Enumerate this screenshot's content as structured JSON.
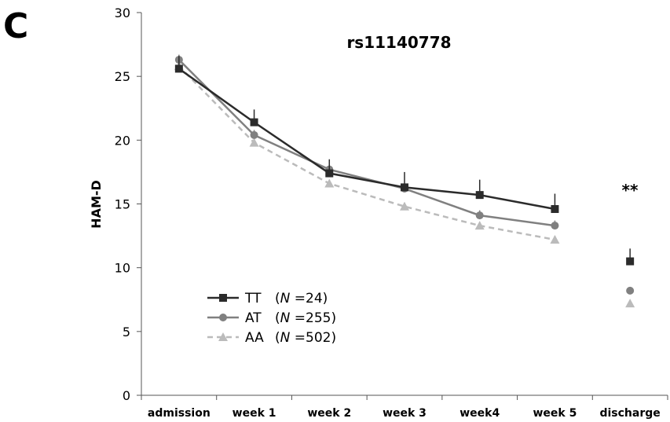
{
  "panel_label": "C",
  "chart_data": {
    "type": "line",
    "title": "rs11140778",
    "xlabel": "",
    "ylabel": "HAM-D",
    "categories": [
      "admission",
      "week 1",
      "week 2",
      "week 3",
      "week4",
      "week 5",
      "discharge"
    ],
    "ylim": [
      0,
      30
    ],
    "yticks": [
      0,
      5,
      10,
      15,
      20,
      25,
      30
    ],
    "grid": false,
    "legend_position": "bottom-left",
    "annotation": "**",
    "series": [
      {
        "name": "TT",
        "n_label": "(N =24)",
        "n_italic": "N",
        "n_rest": " =24)",
        "marker": "square",
        "color": "#2b2b2b",
        "line_style": "solid",
        "values": [
          25.6,
          21.4,
          17.4,
          16.3,
          15.7,
          14.6,
          10.5
        ],
        "error_plus": [
          1.0,
          1.0,
          1.1,
          1.2,
          1.2,
          1.2,
          1.0
        ]
      },
      {
        "name": "AT",
        "n_label": "(N =255)",
        "n_italic": "N",
        "n_rest": " =255)",
        "marker": "circle",
        "color": "#808080",
        "line_style": "solid",
        "values": [
          26.3,
          20.4,
          17.7,
          16.2,
          14.1,
          13.3,
          8.2
        ],
        "error_plus": [
          0.4,
          0.4,
          0.4,
          0.4,
          0.4,
          0.4,
          0.3
        ]
      },
      {
        "name": "AA",
        "n_label": "(N =502)",
        "n_italic": "N",
        "n_rest": " =502)",
        "marker": "triangle",
        "color": "#bbbbbb",
        "line_style": "dashed",
        "values": [
          25.8,
          19.8,
          16.6,
          14.8,
          13.3,
          12.2,
          7.2
        ],
        "error_plus": [
          0.3,
          0.3,
          0.3,
          0.3,
          0.3,
          0.3,
          0.2
        ]
      }
    ]
  }
}
